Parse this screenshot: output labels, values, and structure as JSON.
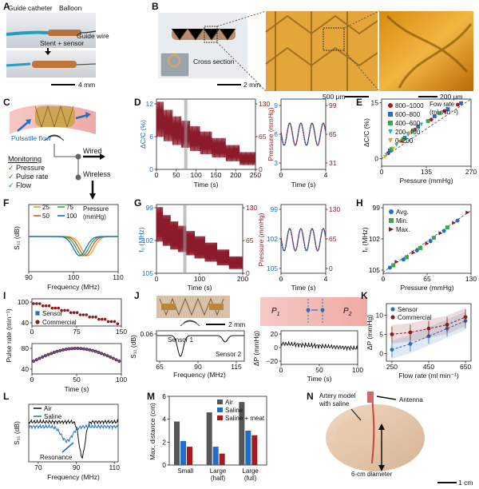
{
  "figure": {
    "panel_letters": [
      "A",
      "B",
      "C",
      "D",
      "E",
      "F",
      "G",
      "H",
      "I",
      "J",
      "K",
      "L",
      "M",
      "N"
    ]
  },
  "panel_a": {
    "labels": {
      "guide_catheter": "Guide catheter",
      "balloon": "Balloon",
      "stent_sensor": "Stent + sensor",
      "guide_wire": "Guide wire"
    },
    "scale_bar": "4 mm"
  },
  "panel_b": {
    "cross_section": "Cross section",
    "scale_1": "2 mm",
    "scale_2": "500 μm",
    "scale_3": "200 μm"
  },
  "panel_c": {
    "pulsatile_flow": "Pulsatile flow",
    "monitoring_title": "Monitoring",
    "monitoring_items": [
      "Pressure",
      "Pulse rate",
      "Flow"
    ],
    "check": "✓",
    "wired": "Wired",
    "wireless": "Wireless"
  },
  "panel_d": {
    "chart_data": {
      "type": "line",
      "ylabel": "ΔC/C (%)",
      "y2label": "Pressure (mmHg)",
      "xlabel": "Time (s)",
      "left_ticks": [
        "12",
        "6",
        "0"
      ],
      "right_ticks": [
        "130",
        "65",
        "0"
      ],
      "x_ticks": [
        "0",
        "50",
        "100",
        "150",
        "200",
        "250"
      ],
      "xlim": [
        0,
        250
      ],
      "ylim": [
        0,
        12
      ],
      "y2lim": [
        0,
        130
      ],
      "description": "Staircase decreasing pressure pulsatile signal",
      "steps": [
        {
          "t_start": 0,
          "t_end": 18,
          "pressure_max": 125,
          "pressure_min": 60
        },
        {
          "t_start": 18,
          "t_end": 40,
          "pressure_max": 110,
          "pressure_min": 52
        },
        {
          "t_start": 40,
          "t_end": 62,
          "pressure_max": 98,
          "pressure_min": 45
        },
        {
          "t_start": 62,
          "t_end": 85,
          "pressure_max": 90,
          "pressure_min": 40
        },
        {
          "t_start": 85,
          "t_end": 110,
          "pressure_max": 80,
          "pressure_min": 34
        },
        {
          "t_start": 110,
          "t_end": 140,
          "pressure_max": 70,
          "pressure_min": 28
        },
        {
          "t_start": 140,
          "t_end": 175,
          "pressure_max": 58,
          "pressure_min": 22
        },
        {
          "t_start": 175,
          "t_end": 210,
          "pressure_max": 45,
          "pressure_min": 15
        },
        {
          "t_start": 210,
          "t_end": 250,
          "pressure_max": 32,
          "pressure_min": 8
        }
      ],
      "zoom": {
        "x_ticks": [
          "0",
          "4"
        ],
        "left_ticks": [
          "9",
          "6",
          "3"
        ],
        "right_ticks": [
          "99",
          "65",
          "31"
        ],
        "xlabel": "Time (s)"
      }
    }
  },
  "panel_e": {
    "chart_data": {
      "type": "scatter",
      "ylabel": "ΔC/C (%)",
      "xlabel": "Pressure (mmHg)",
      "x_ticks": [
        "0",
        "135",
        "270"
      ],
      "y_ticks": [
        "15",
        "0"
      ],
      "xlim": [
        0,
        270
      ],
      "ylim": [
        -2,
        16
      ],
      "legend_title": "Fow rate\n(ml min⁻¹)",
      "legend_title_lines": [
        "Fow rate",
        "(ml min⁻¹)"
      ],
      "series": [
        {
          "name": "800–1000",
          "color": "#b0162a",
          "marker": "circle",
          "points": [
            [
              20,
              1.5
            ],
            [
              60,
              4.8
            ],
            [
              100,
              7.8
            ],
            [
              150,
              10.5
            ],
            [
              190,
              12.8
            ],
            [
              230,
              14.5
            ]
          ]
        },
        {
          "name": "600–800",
          "color": "#1f6fc6",
          "marker": "square",
          "points": [
            [
              25,
              2.2
            ],
            [
              70,
              5.6
            ],
            [
              110,
              8.6
            ],
            [
              160,
              11.4
            ],
            [
              200,
              13.3
            ],
            [
              240,
              14.9
            ]
          ]
        },
        {
          "name": "400–600",
          "color": "#3aa84a",
          "marker": "square",
          "points": [
            [
              30,
              2.6
            ],
            [
              65,
              5.3
            ],
            [
              95,
              7.6
            ],
            [
              140,
              10.1
            ],
            [
              175,
              12.2
            ]
          ]
        },
        {
          "name": "200–400",
          "color": "#2bb5c8",
          "marker": "triangle-down",
          "points": [
            [
              15,
              1.0
            ],
            [
              45,
              3.7
            ],
            [
              80,
              6.4
            ],
            [
              120,
              9.2
            ]
          ]
        },
        {
          "name": "0–200",
          "color": "#f0a020",
          "marker": "triangle-down",
          "points": [
            [
              10,
              0.5
            ],
            [
              35,
              2.7
            ],
            [
              55,
              4.6
            ],
            [
              85,
              6.8
            ]
          ]
        }
      ],
      "fit_line": [
        [
          0,
          0
        ],
        [
          270,
          16
        ]
      ]
    }
  },
  "panel_f": {
    "chart_data": {
      "type": "line",
      "ylabel": "S₁₁ (dB)",
      "xlabel": "Frequency (MHz)",
      "x_ticks": [
        "90",
        "100",
        "110"
      ],
      "xlim": [
        90,
        110
      ],
      "legend_title": "Pressure\n(mmHg)",
      "legend_title_lines": [
        "Pressure",
        "(mmHg)"
      ],
      "series": [
        {
          "name": "25",
          "color": "#e8a72a",
          "dip_center": 103.2
        },
        {
          "name": "50",
          "color": "#c75a2a",
          "dip_center": 102.6
        },
        {
          "name": "75",
          "color": "#3aa84a",
          "dip_center": 102.0
        },
        {
          "name": "100",
          "color": "#1f6fc6",
          "dip_center": 101.4
        }
      ]
    }
  },
  "panel_g": {
    "chart_data": {
      "type": "line",
      "ylabel": "f₀ (MHz)",
      "y2label": "Pressure (mmHg)",
      "xlabel": "Time (s)",
      "left_ticks": [
        "99",
        "102",
        "105"
      ],
      "right_ticks": [
        "130",
        "65",
        "0"
      ],
      "x_ticks": [
        "0",
        "100",
        "200"
      ],
      "xlim": [
        0,
        200
      ],
      "zoom": {
        "x_ticks": [
          "0",
          "4"
        ],
        "left_ticks": [
          "99",
          "102",
          "105"
        ],
        "right_ticks": [
          "130",
          "65",
          "0"
        ],
        "xlabel": "Time (s)"
      }
    }
  },
  "panel_h": {
    "chart_data": {
      "type": "scatter",
      "ylabel": "f₀ (MHz)",
      "xlabel": "Pressure (mmHg)",
      "x_ticks": [
        "0",
        "65",
        "130"
      ],
      "y_ticks": [
        "99",
        "102",
        "105"
      ],
      "xlim": [
        0,
        130
      ],
      "ylim": [
        105,
        99
      ],
      "series": [
        {
          "name": "Avg.",
          "color": "#1f6fc6",
          "marker": "circle",
          "points": [
            [
              10,
              104.5
            ],
            [
              30,
              103.8
            ],
            [
              50,
              103.0
            ],
            [
              70,
              102.2
            ],
            [
              90,
              101.3
            ],
            [
              110,
              100.4
            ]
          ]
        },
        {
          "name": "Min.",
          "color": "#3aa84a",
          "marker": "square",
          "points": [
            [
              15,
              104.3
            ],
            [
              35,
              103.6
            ],
            [
              55,
              102.8
            ],
            [
              75,
              101.9
            ],
            [
              95,
              101.0
            ]
          ]
        },
        {
          "name": "Max.",
          "color": "#8b1a1a",
          "marker": "triangle-right",
          "points": [
            [
              20,
              104.0
            ],
            [
              45,
              103.2
            ],
            [
              65,
              102.4
            ],
            [
              85,
              101.5
            ],
            [
              105,
              100.6
            ],
            [
              125,
              99.7
            ]
          ]
        }
      ],
      "fit_line": [
        [
          0,
          104.9
        ],
        [
          130,
          99.5
        ]
      ]
    }
  },
  "panel_i": {
    "chart_data": {
      "type": "scatter",
      "ylabel": "Pulse rate (min⁻¹)",
      "xlabel": "Time (s)",
      "top_x_ticks": [
        "0",
        "75",
        "150"
      ],
      "bottom_x_ticks": [
        "0",
        "50",
        "100"
      ],
      "top_y_ticks": [
        "100",
        "40"
      ],
      "bottom_y_ticks": [
        "80",
        "40"
      ],
      "series": [
        {
          "name": "Sensor",
          "color": "#1f6fc6",
          "marker": "square"
        },
        {
          "name": "Commercial",
          "color": "#8b1a1a",
          "marker": "circle"
        }
      ]
    }
  },
  "panel_j": {
    "scale_bar": "2 mm",
    "chart_data": {
      "type": "line",
      "left": {
        "ylabel": "S₁₁ (dB)",
        "y_ticks": [
          "0.06"
        ],
        "xlabel": "Frequency (MHz)",
        "x_ticks": [
          "65",
          "90",
          "115"
        ],
        "annotations": [
          "Sensor 1",
          "Sensor 2"
        ]
      },
      "right": {
        "ylabel": "ΔP (mmHg)",
        "y_ticks": [
          "20",
          "0",
          "−20"
        ],
        "xlabel": "Time (s)",
        "x_ticks": [
          "0",
          "50",
          "100"
        ]
      }
    },
    "p1_main": "P",
    "p1_sub": "1",
    "p2_main": "P",
    "p2_sub": "2"
  },
  "panel_k": {
    "chart_data": {
      "type": "line",
      "ylabel": "ΔP (mmHg)",
      "xlabel": "Flow rate (ml min⁻¹)",
      "x_ticks": [
        "250",
        "450",
        "650"
      ],
      "y_ticks": [
        "10",
        "5",
        "0"
      ],
      "xlim": [
        220,
        680
      ],
      "ylim": [
        -2,
        13
      ],
      "series": [
        {
          "name": "Sensor",
          "color": "#1f6fc6",
          "marker": "circle",
          "points": [
            [
              250,
              1.0
            ],
            [
              350,
              2.5
            ],
            [
              450,
              4.5
            ],
            [
              550,
              6.5
            ],
            [
              650,
              8.5
            ]
          ]
        },
        {
          "name": "Commercial",
          "color": "#8b1a1a",
          "marker": "circle",
          "points": [
            [
              250,
              5.0
            ],
            [
              350,
              5.5
            ],
            [
              450,
              6.5
            ],
            [
              550,
              7.5
            ],
            [
              650,
              9.5
            ]
          ]
        }
      ]
    }
  },
  "panel_l": {
    "chart_data": {
      "type": "line",
      "ylabel": "S₁₁ (dB)",
      "xlabel": "Frequency (MHz)",
      "x_ticks": [
        "70",
        "90",
        "110"
      ],
      "xlim": [
        65,
        112
      ],
      "annotation": "Resonance",
      "series": [
        {
          "name": "Air",
          "color": "#111111",
          "dip_center": 93
        },
        {
          "name": "Saline",
          "color": "#1f6fc6",
          "dip_center": 85
        }
      ]
    }
  },
  "panel_m": {
    "chart_data": {
      "type": "bar",
      "ylabel": "Max. distance (cm)",
      "y_ticks": [
        "0",
        "2",
        "4",
        "6"
      ],
      "ylim": [
        0,
        6
      ],
      "categories": [
        "Small",
        "Large (half)",
        "Large (full)"
      ],
      "category_lines": [
        [
          "Small"
        ],
        [
          "Large",
          "(half)"
        ],
        [
          "Large",
          "(full)"
        ]
      ],
      "series": [
        {
          "name": "Air",
          "color": "#555555",
          "values": [
            3.8,
            4.6,
            5.5
          ]
        },
        {
          "name": "Saline",
          "color": "#1f6fc6",
          "values": [
            2.1,
            1.6,
            3.0
          ]
        },
        {
          "name": "Saline + meat",
          "color": "#a51a1a",
          "values": [
            1.6,
            1.0,
            2.6
          ]
        }
      ]
    }
  },
  "panel_n": {
    "artery_label_lines": [
      "Artery model",
      "with saline"
    ],
    "antenna": "Antenna",
    "diameter": "6-cm diameter",
    "scale_bar": "1 cm"
  }
}
